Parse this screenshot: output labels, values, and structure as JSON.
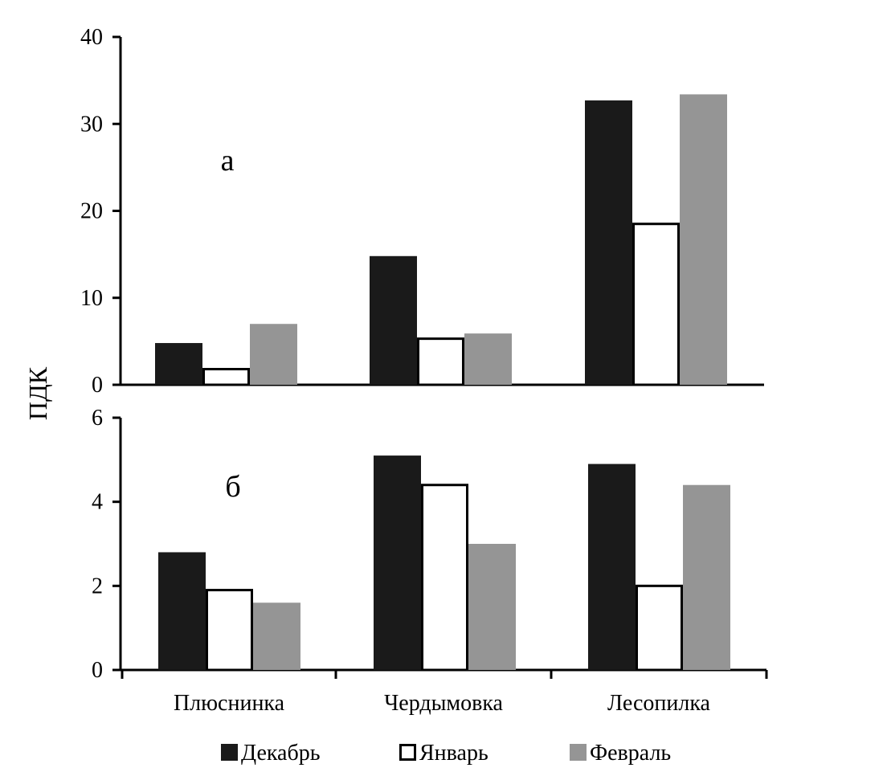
{
  "chart_data": {
    "type": "bar",
    "ylabel": "ПДК",
    "categories": [
      "Плюснинка",
      "Чердымовка",
      "Лесопилка"
    ],
    "legend": [
      {
        "name": "Декабрь",
        "color": "#1a1a1a",
        "style": "filled"
      },
      {
        "name": "Январь",
        "color": "#ffffff",
        "style": "outline"
      },
      {
        "name": "Февраль",
        "color": "#959595",
        "style": "filled"
      }
    ],
    "legend_position": "bottom",
    "panels": [
      {
        "label": "а",
        "ylim": [
          0,
          40
        ],
        "yticks": [
          "0",
          "10",
          "20",
          "30",
          "40"
        ],
        "series": [
          {
            "name": "Декабрь",
            "values": [
              4.8,
              14.8,
              32.7
            ]
          },
          {
            "name": "Январь",
            "values": [
              1.8,
              5.3,
              18.5
            ]
          },
          {
            "name": "Февраль",
            "values": [
              7.0,
              5.9,
              33.4
            ]
          }
        ]
      },
      {
        "label": "б",
        "ylim": [
          0,
          6
        ],
        "yticks": [
          "0",
          "2",
          "4",
          "6"
        ],
        "series": [
          {
            "name": "Декабрь",
            "values": [
              2.8,
              5.1,
              4.9
            ]
          },
          {
            "name": "Январь",
            "values": [
              1.9,
              4.4,
              2.0
            ]
          },
          {
            "name": "Февраль",
            "values": [
              1.6,
              3.0,
              4.4
            ]
          }
        ]
      }
    ],
    "grid": false
  }
}
